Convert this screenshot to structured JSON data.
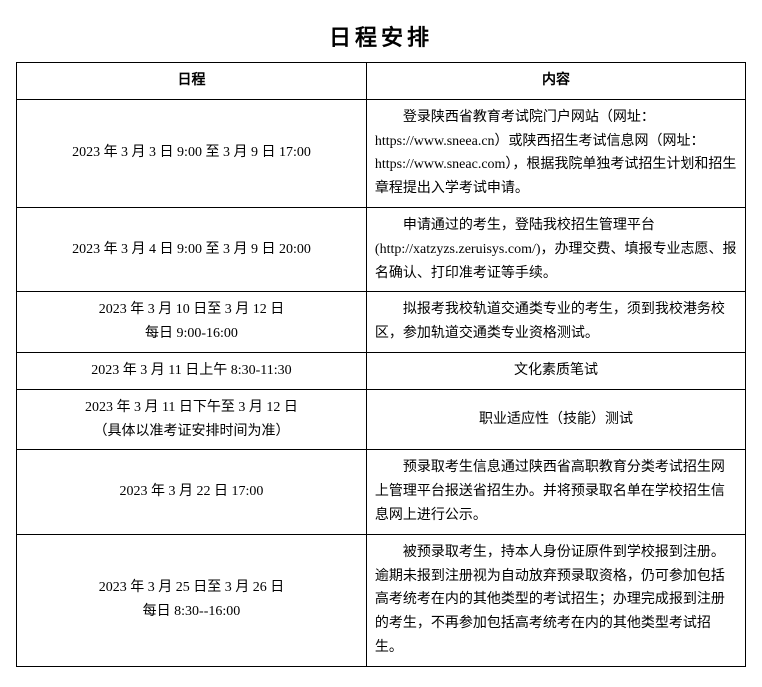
{
  "title": "日程安排",
  "headers": {
    "schedule": "日程",
    "content": "内容"
  },
  "rows": [
    {
      "schedule": "2023 年 3 月 3 日 9:00 至 3 月 9 日 17:00",
      "content": "登录陕西省教育考试院门户网站（网址：https://www.sneea.cn）或陕西招生考试信息网（网址：https://www.sneac.com），根据我院单独考试招生计划和招生章程提出入学考试申请。"
    },
    {
      "schedule": "2023 年 3 月 4 日 9:00 至 3 月 9 日 20:00",
      "content": "申请通过的考生，登陆我校招生管理平台 (http://xatzyzs.zeruisys.com/)，办理交费、填报专业志愿、报名确认、打印准考证等手续。"
    },
    {
      "schedule_line1": "2023 年 3 月 10 日至 3 月 12 日",
      "schedule_line2": "每日 9:00-16:00",
      "content": "拟报考我校轨道交通类专业的考生，须到我校港务校区，参加轨道交通类专业资格测试。"
    },
    {
      "schedule": "2023 年 3 月 11 日上午 8:30-11:30",
      "content": "文化素质笔试",
      "content_center": true
    },
    {
      "schedule_line1": "2023 年 3 月 11 日下午至 3 月 12 日",
      "schedule_line2": "（具体以准考证安排时间为准）",
      "content": "职业适应性（技能）测试",
      "content_center": true
    },
    {
      "schedule": "2023 年 3 月 22 日 17:00",
      "content": "预录取考生信息通过陕西省高职教育分类考试招生网上管理平台报送省招生办。并将预录取名单在学校招生信息网上进行公示。"
    },
    {
      "schedule_line1": "2023 年 3 月 25 日至 3 月 26 日",
      "schedule_line2": "每日 8:30--16:00",
      "content": "被预录取考生，持本人身份证原件到学校报到注册。逾期未报到注册视为自动放弃预录取资格，仍可参加包括高考统考在内的其他类型的考试招生；办理完成报到注册的考生，不再参加包括高考统考在内的其他类型考试招生。"
    }
  ]
}
